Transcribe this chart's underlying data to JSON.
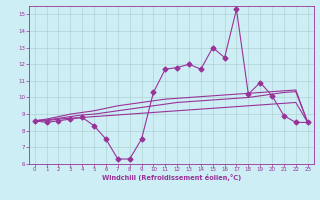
{
  "x": [
    0,
    1,
    2,
    3,
    4,
    5,
    6,
    7,
    8,
    9,
    10,
    11,
    12,
    13,
    14,
    15,
    16,
    17,
    18,
    19,
    20,
    21,
    22,
    23
  ],
  "y_main": [
    8.6,
    8.5,
    8.6,
    8.7,
    8.8,
    8.3,
    7.5,
    6.3,
    6.3,
    7.5,
    10.3,
    11.7,
    11.8,
    12.0,
    11.7,
    13.0,
    12.4,
    15.3,
    10.2,
    10.9,
    10.1,
    8.9,
    8.5,
    8.5
  ],
  "y_line1": [
    8.6,
    8.6,
    8.7,
    8.75,
    8.8,
    8.85,
    8.9,
    8.95,
    9.0,
    9.05,
    9.1,
    9.15,
    9.2,
    9.25,
    9.3,
    9.35,
    9.4,
    9.45,
    9.5,
    9.55,
    9.6,
    9.65,
    9.7,
    8.5
  ],
  "y_line2": [
    8.6,
    8.65,
    8.75,
    8.85,
    8.95,
    9.0,
    9.1,
    9.2,
    9.3,
    9.4,
    9.5,
    9.6,
    9.7,
    9.75,
    9.8,
    9.85,
    9.9,
    9.95,
    10.0,
    10.1,
    10.2,
    10.3,
    10.35,
    8.5
  ],
  "y_line3": [
    8.6,
    8.7,
    8.85,
    9.0,
    9.1,
    9.2,
    9.35,
    9.5,
    9.6,
    9.7,
    9.8,
    9.9,
    9.95,
    10.0,
    10.05,
    10.1,
    10.15,
    10.2,
    10.25,
    10.3,
    10.35,
    10.4,
    10.45,
    8.5
  ],
  "background_color": "#cceef4",
  "grid_color": "#aacccc",
  "line_color": "#993399",
  "ylim": [
    6,
    15.5
  ],
  "xlim": [
    -0.5,
    23.5
  ],
  "yticks": [
    6,
    7,
    8,
    9,
    10,
    11,
    12,
    13,
    14,
    15
  ],
  "xticks": [
    0,
    1,
    2,
    3,
    4,
    5,
    6,
    7,
    8,
    9,
    10,
    11,
    12,
    13,
    14,
    15,
    16,
    17,
    18,
    19,
    20,
    21,
    22,
    23
  ],
  "xlabel": "Windchill (Refroidissement éolien,°C)",
  "marker": "D",
  "marker_size": 2.5,
  "lw_main": 0.8,
  "lw_lines": 0.8
}
